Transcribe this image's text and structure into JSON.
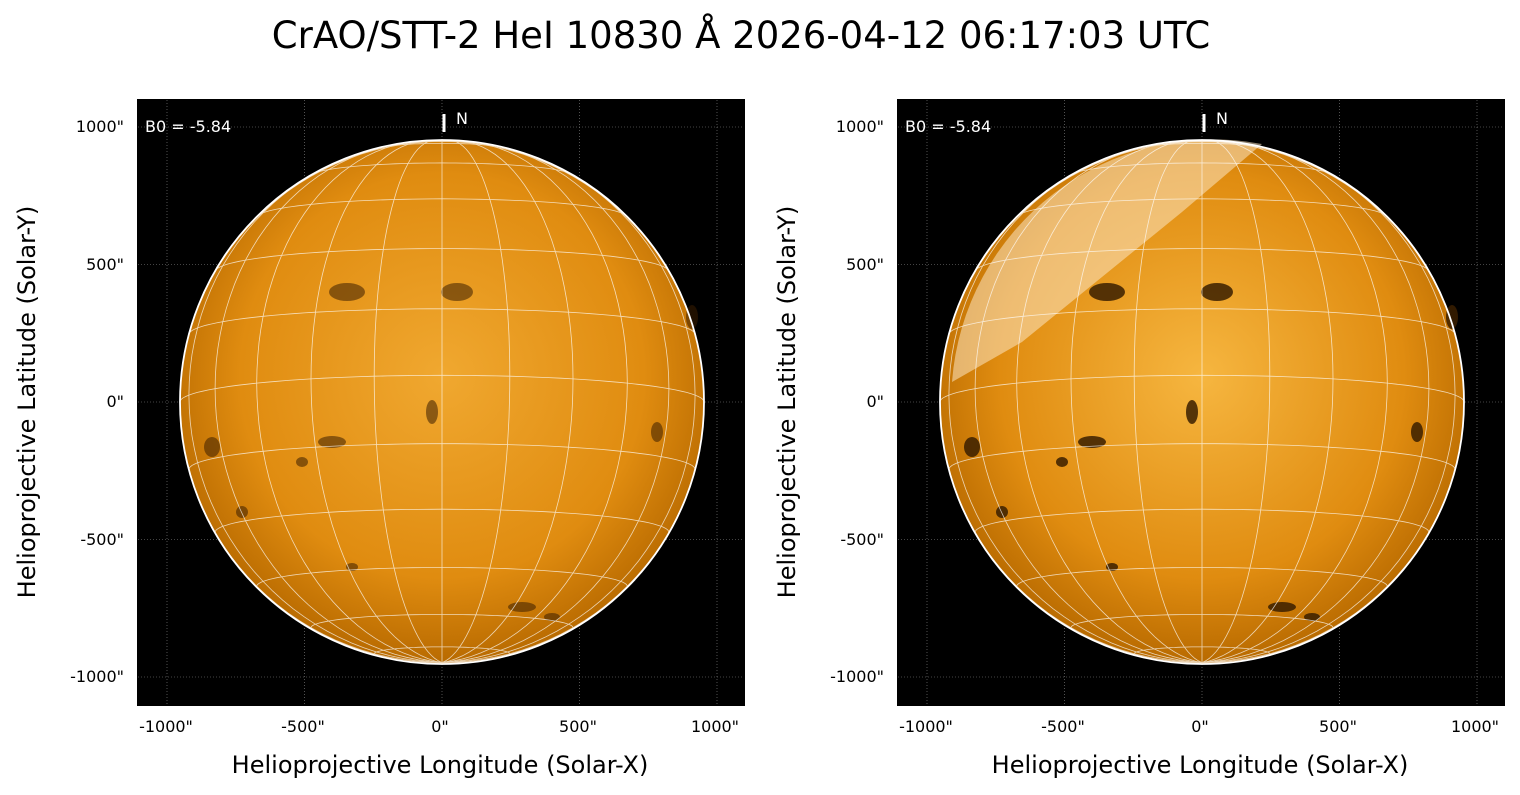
{
  "title": "CrAO/STT-2 HeI 10830 Å 2026-04-12 06:17:03 UTC",
  "panels": [
    {
      "b0_label": "B0 = -5.84",
      "north_label": "N",
      "xlabel": "Helioprojective Longitude (Solar-X)",
      "ylabel": "Helioprojective Latitude (Solar-Y)",
      "xticks": [
        "-1000\"",
        "-500\"",
        "0\"",
        "500\"",
        "1000\""
      ],
      "yticks": [
        "1000\"",
        "500\"",
        "0\"",
        "-500\"",
        "-1000\""
      ],
      "contrast": "normal"
    },
    {
      "b0_label": "B0 = -5.84",
      "north_label": "N",
      "xlabel": "Helioprojective Longitude (Solar-X)",
      "ylabel": "Helioprojective Latitude (Solar-Y)",
      "xticks": [
        "-1000\"",
        "-500\"",
        "0\"",
        "500\"",
        "1000\""
      ],
      "yticks": [
        "1000\"",
        "500\"",
        "0\"",
        "-500\"",
        "-1000\""
      ],
      "contrast": "enhanced"
    }
  ],
  "colors": {
    "disk_center": "#f0a830",
    "disk_mid": "#e08c10",
    "disk_limb": "#b86a00",
    "disk_enhanced_center": "#f6b640",
    "grid": "#ffffff",
    "background": "#000000"
  }
}
